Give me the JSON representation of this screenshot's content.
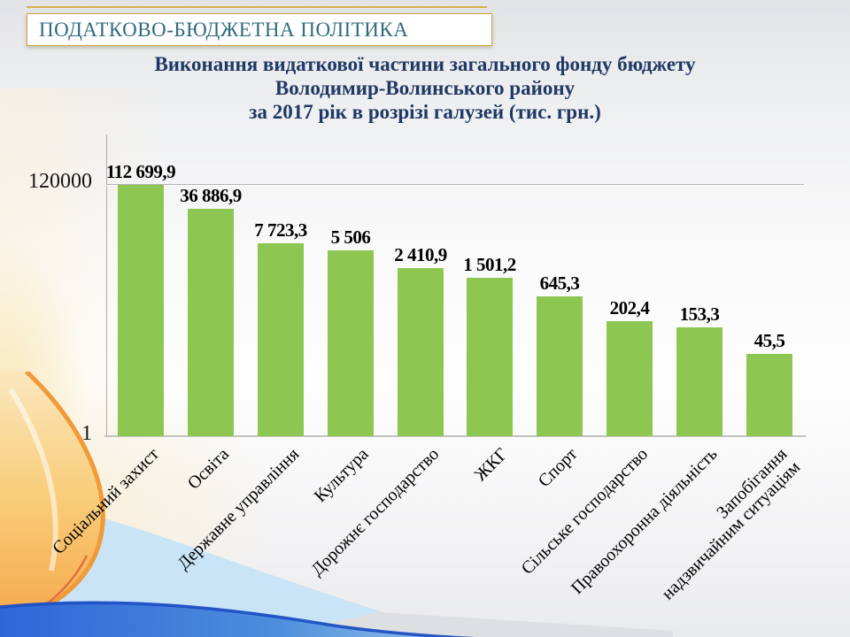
{
  "slide": {
    "kicker": "ПОДАТКОВО-БЮДЖЕТНА ПОЛІТИКА",
    "title_lines": [
      "Виконання видаткової частини загального фонду бюджету",
      "Володимир-Волинського району",
      "за 2017 рік в розрізі галузей (тис. грн.)"
    ]
  },
  "chart_data": {
    "type": "bar",
    "title": "Виконання видаткової частини загального фонду бюджету Володимир-Волинського району за 2017 рік в розрізі галузей (тис. грн.)",
    "categories": [
      "Соціальний захист",
      "Освіта",
      "Державне управління",
      "Культура",
      "Дорожнє господарство",
      "ЖКГ",
      "Спорт",
      "Сільське господарство",
      "Правоохоронна діяльність",
      "Запобігання\nнадзвичайним ситуаціям"
    ],
    "values": [
      112699.9,
      36886.9,
      7723.3,
      5506,
      2410.9,
      1501.2,
      645.3,
      202.4,
      153.3,
      45.5
    ],
    "value_labels": [
      "112 699,9",
      "36 886,9",
      "7 723,3",
      "5 506",
      "2 410,9",
      "1 501,2",
      "645,3",
      "202,4",
      "153,3",
      "45,5"
    ],
    "xlabel": "",
    "ylabel": "",
    "yscale": "log",
    "ylim": [
      1,
      1000000
    ],
    "yticks": [
      {
        "value": 120000,
        "label": "120000"
      },
      {
        "value": 1,
        "label": "1"
      }
    ],
    "grid": "single horizontal gridline at 120000",
    "legend": "none",
    "bar_color": "#8DC752"
  },
  "colors": {
    "bar": "#8DC752",
    "title_text": "#1F3864",
    "kicker_text": "#2E6B7C",
    "kicker_border": "#CFA23F",
    "axis_line": "#ADADAD",
    "gridline": "#B3B3B3"
  }
}
